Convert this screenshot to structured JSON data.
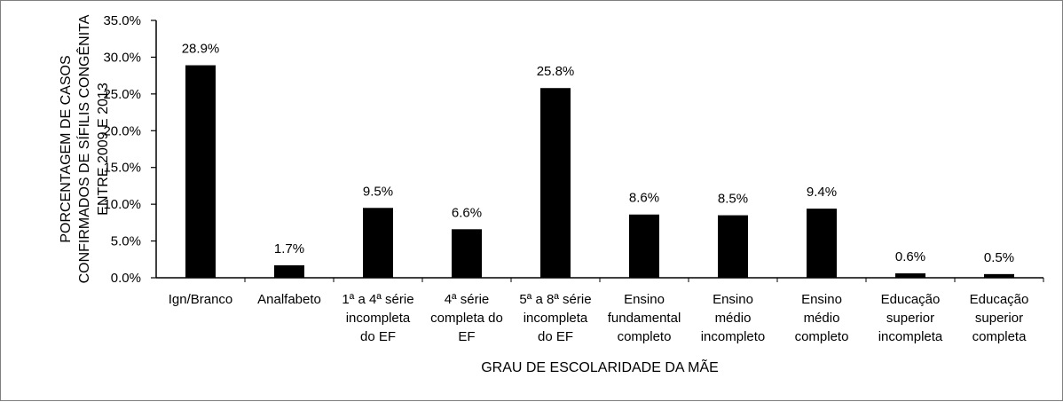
{
  "chart_data": {
    "type": "bar",
    "categories": [
      [
        "Ign/Branco"
      ],
      [
        "Analfabeto"
      ],
      [
        "1ª a 4ª série",
        "incompleta",
        "do EF"
      ],
      [
        "4ª série",
        "completa do",
        "EF"
      ],
      [
        "5ª a 8ª série",
        "incompleta",
        "do EF"
      ],
      [
        "Ensino",
        "fundamental",
        "completo"
      ],
      [
        "Ensino",
        "médio",
        "incompleto"
      ],
      [
        "Ensino",
        "médio",
        "completo"
      ],
      [
        "Educação",
        "superior",
        "incompleta"
      ],
      [
        "Educação",
        "superior",
        "completa"
      ]
    ],
    "values": [
      28.9,
      1.7,
      9.5,
      6.6,
      25.8,
      8.6,
      8.5,
      9.4,
      0.6,
      0.5
    ],
    "data_labels": [
      "28.9%",
      "1.7%",
      "9.5%",
      "6.6%",
      "25.8%",
      "8.6%",
      "8.5%",
      "9.4%",
      "0.6%",
      "0.5%"
    ],
    "y_ticks": [
      0,
      5,
      10,
      15,
      20,
      25,
      30,
      35
    ],
    "y_tick_labels": [
      "0.0%",
      "5.0%",
      "10.0%",
      "15.0%",
      "20.0%",
      "25.0%",
      "30.0%",
      "35.0%"
    ],
    "ylim": [
      0,
      35
    ],
    "xlabel": "GRAU DE ESCOLARIDADE DA MÃE",
    "ylabel": [
      "PORCENTAGEM DE CASOS",
      "CONFIRMADOS DE SÍFILIS CONGÊNITA",
      "ENTRE 2009 E 2013"
    ],
    "grid": false,
    "legend": "none",
    "bar_color": "#000000"
  }
}
